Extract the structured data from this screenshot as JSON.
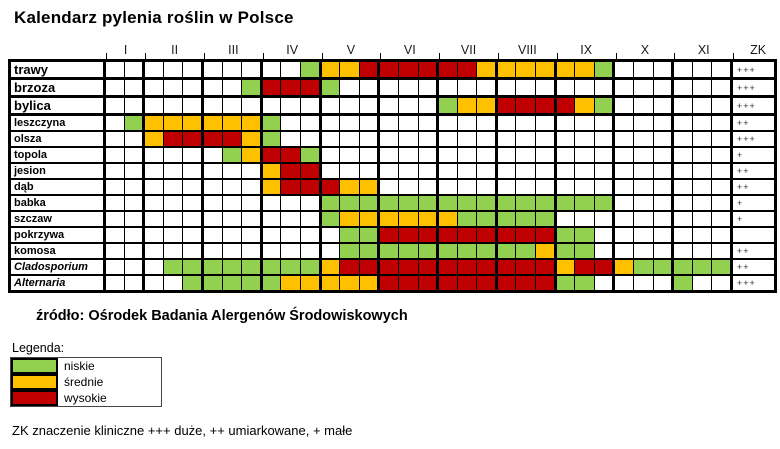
{
  "title": "Kalendarz pylenia roślin w Polsce",
  "source": "źródło: Ośrodek Badania Alergenów Środowiskowych",
  "legend": {
    "label": "Legenda:",
    "items": [
      {
        "label": "niskie",
        "level": "low"
      },
      {
        "label": "średnie",
        "level": "medium"
      },
      {
        "label": "wysokie",
        "level": "high"
      }
    ]
  },
  "footnote": "ZK znaczenie kliniczne +++ duże, ++ umiarkowane, + małe",
  "colors": {
    "low": "#92d050",
    "medium": "#ffc000",
    "high": "#c00000",
    "none": "#ffffff"
  },
  "chart_data": {
    "type": "heatmap",
    "title": "Kalendarz pylenia roślin w Polsce",
    "months": [
      "I",
      "II",
      "III",
      "IV",
      "V",
      "VI",
      "VII",
      "VIII",
      "IX",
      "X",
      "XI"
    ],
    "cells_per_month": [
      2,
      3,
      3,
      3,
      3,
      3,
      3,
      3,
      3,
      3,
      3
    ],
    "zk_label": "ZK",
    "levels": {
      "0": "brak",
      "g": "niskie",
      "y": "średnie",
      "r": "wysokie"
    },
    "rows": [
      {
        "name": "trawy",
        "group": "major",
        "italic": false,
        "zk": "+++",
        "cells": "0000000000gyyrrrrrryyyyyyg000000"
      },
      {
        "name": "brzoza",
        "group": "major",
        "italic": false,
        "zk": "+++",
        "cells": "0000000grrrg00000000000000000000"
      },
      {
        "name": "bylica",
        "group": "major",
        "italic": false,
        "zk": "+++",
        "cells": "00000000000000000gyyrrrryg000000"
      },
      {
        "name": "leszczyna",
        "group": "minor",
        "italic": false,
        "zk": "++",
        "cells": "0gyyyyyyg00000000000000000000000"
      },
      {
        "name": "olsza",
        "group": "minor",
        "italic": false,
        "zk": "+++",
        "cells": "00yrrrryg00000000000000000000000"
      },
      {
        "name": "topola",
        "group": "minor",
        "italic": false,
        "zk": "+",
        "cells": "000000gyrrg000000000000000000000"
      },
      {
        "name": "jesion",
        "group": "minor",
        "italic": false,
        "zk": "++",
        "cells": "00000000yrr000000000000000000000"
      },
      {
        "name": "dąb",
        "group": "minor",
        "italic": false,
        "zk": "++",
        "cells": "00000000yrrryy000000000000000000"
      },
      {
        "name": "babka",
        "group": "minor",
        "italic": false,
        "zk": "+",
        "cells": "00000000000ggggggggggggggg000000"
      },
      {
        "name": "szczaw",
        "group": "minor",
        "italic": false,
        "zk": "+",
        "cells": "00000000000gyyyyyyggggg000000000"
      },
      {
        "name": "pokrzywa",
        "group": "minor",
        "italic": false,
        "zk": "",
        "cells": "000000000000ggrrrrrrrrrgg0000000"
      },
      {
        "name": "komosa",
        "group": "minor",
        "italic": false,
        "zk": "++",
        "cells": "000000000000ggggggggggygg0000000"
      },
      {
        "name": "Cladosporium",
        "group": "minor",
        "italic": true,
        "zk": "++",
        "cells": "000ggggggggyrrrrrrrrrrryrryggggg"
      },
      {
        "name": "Alternaria",
        "group": "minor",
        "italic": true,
        "zk": "+++",
        "cells": "0000gggggyyyyyrrrrrrrrrgg0000g00"
      }
    ]
  }
}
